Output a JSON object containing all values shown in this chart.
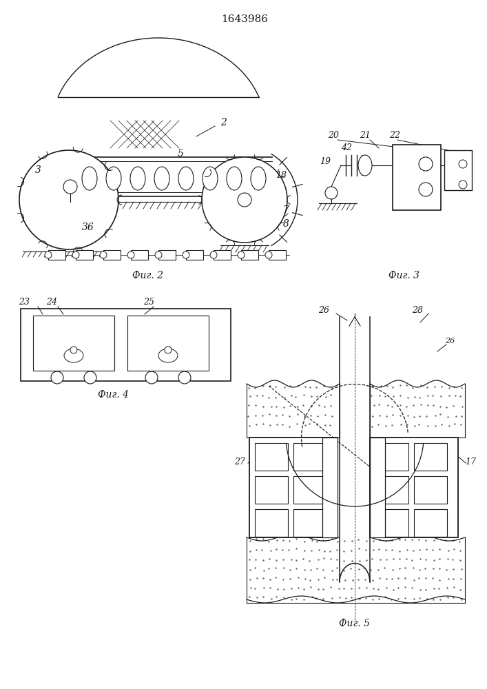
{
  "title": "1643986",
  "fig2_label": "Фиг. 2",
  "fig3_label": "Фиг. 3",
  "fig4_label": "Фиг. 4",
  "fig5_label": "Фиг. 5",
  "bg_color": "#ffffff",
  "line_color": "#1a1a1a"
}
